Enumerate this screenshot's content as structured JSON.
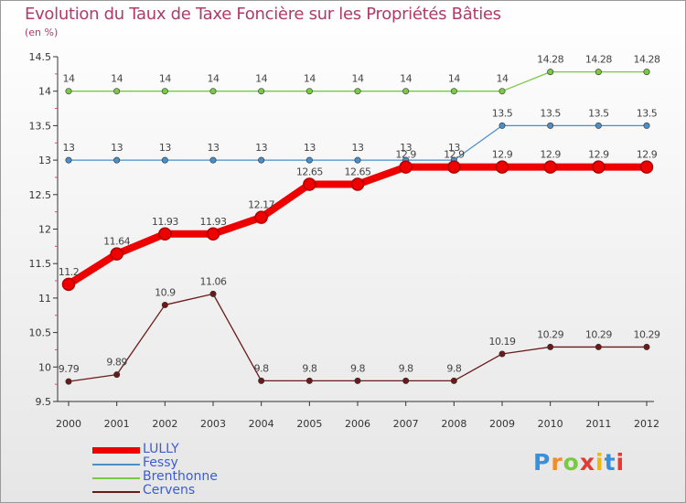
{
  "chart_data": {
    "type": "line",
    "title": "Evolution du Taux de Taxe Foncière sur les Propriétés Bâties",
    "ylabel": "(en %)",
    "xlabel": "",
    "categories": [
      "2000",
      "2001",
      "2002",
      "2003",
      "2004",
      "2005",
      "2006",
      "2007",
      "2008",
      "2009",
      "2010",
      "2011",
      "2012"
    ],
    "ylim": [
      9.5,
      14.5
    ],
    "yticks": [
      "9.5",
      "10",
      "10.5",
      "11",
      "11.5",
      "12",
      "12.5",
      "13",
      "13.5",
      "14",
      "14.5"
    ],
    "grid": false,
    "legend": "bottom-left",
    "series": [
      {
        "name": "LULLY",
        "color": "#ee0000",
        "values": [
          11.2,
          11.64,
          11.93,
          11.93,
          12.17,
          12.65,
          12.65,
          12.9,
          12.9,
          12.9,
          12.9,
          12.9,
          12.9
        ],
        "labels": [
          "11.2",
          "11.64",
          "11.93",
          "11.93",
          "12.17",
          "12.65",
          "12.65",
          "12.9",
          "12.9",
          "12.9",
          "12.9",
          "12.9",
          "12.9"
        ]
      },
      {
        "name": "Fessy",
        "color": "#4a8fc8",
        "values": [
          13,
          13,
          13,
          13,
          13,
          13,
          13,
          13,
          13,
          13.5,
          13.5,
          13.5,
          13.5
        ],
        "labels": [
          "13",
          "13",
          "13",
          "13",
          "13",
          "13",
          "13",
          "13",
          "13",
          "13.5",
          "13.5",
          "13.5",
          "13.5"
        ]
      },
      {
        "name": "Brenthonne",
        "color": "#7ac943",
        "values": [
          14,
          14,
          14,
          14,
          14,
          14,
          14,
          14,
          14,
          14,
          14.28,
          14.28,
          14.28
        ],
        "labels": [
          "14",
          "14",
          "14",
          "14",
          "14",
          "14",
          "14",
          "14",
          "14",
          "14",
          "14.28",
          "14.28",
          "14.28"
        ]
      },
      {
        "name": "Cervens",
        "color": "#6b1a1a",
        "values": [
          9.79,
          9.89,
          10.9,
          11.06,
          9.8,
          9.8,
          9.8,
          9.8,
          9.8,
          10.19,
          10.29,
          10.29,
          10.29
        ],
        "labels": [
          "9.79",
          "9.89",
          "10.9",
          "11.06",
          "9.8",
          "9.8",
          "9.8",
          "9.8",
          "9.8",
          "10.19",
          "10.29",
          "10.29",
          "10.29"
        ]
      }
    ]
  },
  "logo": {
    "letters": [
      "P",
      "r",
      "o",
      "x",
      "i",
      "t",
      "i"
    ],
    "colors": [
      "#3a8fd9",
      "#f28c28",
      "#7ac943",
      "#e53935",
      "#f2b800",
      "#3a8fd9",
      "#e53935"
    ]
  }
}
